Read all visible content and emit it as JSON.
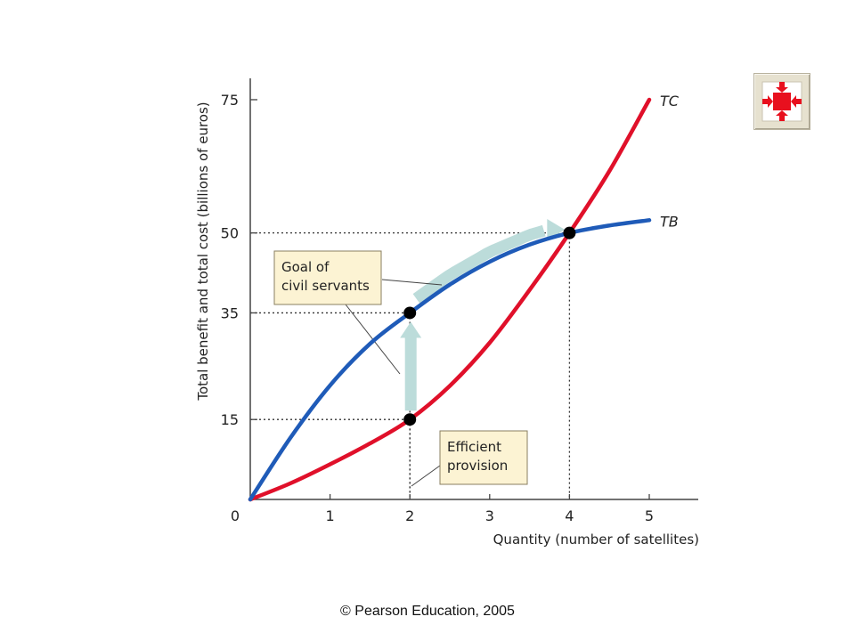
{
  "chart_data": {
    "type": "line",
    "xlabel": "Quantity (number of satellites)",
    "ylabel": "Total benefit and total cost (billions of euros)",
    "xlim": [
      0,
      5.6
    ],
    "ylim": [
      0,
      80
    ],
    "x_ticks": [
      0,
      1,
      2,
      3,
      4,
      5
    ],
    "y_ticks": [
      15,
      35,
      50,
      75
    ],
    "x_tick_labels": [
      "0",
      "1",
      "2",
      "3",
      "4",
      "5"
    ],
    "y_tick_labels": [
      "15",
      "35",
      "50",
      "75"
    ],
    "series": [
      {
        "name": "TC",
        "color": "#e0102a",
        "points": [
          [
            0,
            0
          ],
          [
            0.5,
            3.0
          ],
          [
            1,
            6.6
          ],
          [
            1.5,
            10.5
          ],
          [
            2,
            15
          ],
          [
            2.5,
            21.3
          ],
          [
            3,
            29.4
          ],
          [
            3.5,
            39.3
          ],
          [
            4,
            50
          ],
          [
            4.5,
            61.6
          ],
          [
            5,
            75
          ]
        ]
      },
      {
        "name": "TB",
        "color": "#1f5bb8",
        "points": [
          [
            0,
            0
          ],
          [
            0.5,
            11.5
          ],
          [
            1,
            21.4
          ],
          [
            1.5,
            29.2
          ],
          [
            2,
            35
          ],
          [
            2.5,
            40.3
          ],
          [
            3,
            44.6
          ],
          [
            3.5,
            47.8
          ],
          [
            4,
            50
          ],
          [
            4.5,
            51.4
          ],
          [
            5,
            52.4
          ]
        ]
      }
    ],
    "markers": [
      {
        "x": 2,
        "y": 35
      },
      {
        "x": 2,
        "y": 15
      },
      {
        "x": 4,
        "y": 50
      }
    ],
    "guides": [
      {
        "x": 2,
        "y": 35
      },
      {
        "x": 2,
        "y": 15
      },
      {
        "x": 4,
        "y": 50
      }
    ],
    "arrow_color": "#bcdcda",
    "annotations": [
      {
        "lines": [
          "Goal of",
          "civil servants"
        ]
      },
      {
        "lines": [
          "Efficient",
          "provision"
        ]
      }
    ],
    "grid": false,
    "legend": "none"
  },
  "footer": {
    "copyright": "© Pearson Education, 2005"
  },
  "nav_button": {
    "icon": "collapse-arrows-icon",
    "color": "#e8101e"
  }
}
